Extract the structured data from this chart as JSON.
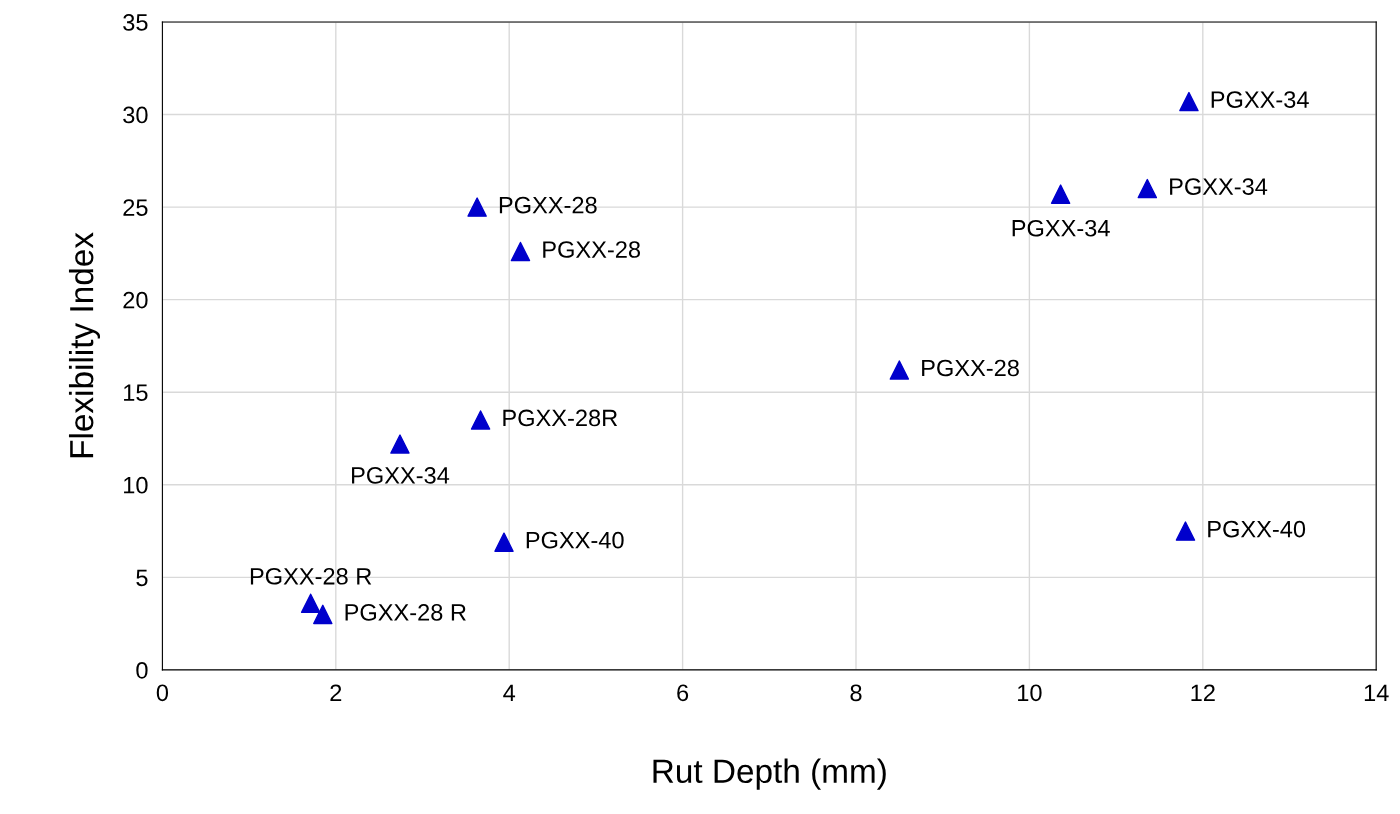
{
  "chart_data": {
    "type": "scatter",
    "xlabel": "Rut Depth (mm)",
    "ylabel": "Flexibility Index",
    "x": [
      11.84,
      11.36,
      10.36,
      3.63,
      4.13,
      8.5,
      3.67,
      2.74,
      3.94,
      11.8,
      1.71,
      1.85
    ],
    "series": [
      {
        "color": "#0000cc",
        "values": [
          30.7,
          26.0,
          25.7,
          25.0,
          22.6,
          16.2,
          13.5,
          12.2,
          6.9,
          7.5,
          3.6,
          3.0
        ]
      }
    ],
    "marker": "triangle",
    "grid": true,
    "legend": false,
    "xlim": [
      0,
      14
    ],
    "xticks": [
      0,
      2,
      4,
      6,
      8,
      10,
      12,
      14
    ],
    "ylim": [
      0,
      35
    ],
    "yticks": [
      0,
      5,
      10,
      15,
      20,
      25,
      30,
      35
    ],
    "annotations": [
      {
        "text": "PGXX-34",
        "x": 11.84,
        "y": 30.7
      },
      {
        "text": "PGXX-34",
        "x": 11.36,
        "y": 26.0
      },
      {
        "text": "PGXX-34",
        "x": 10.36,
        "y": 25.7
      },
      {
        "text": "PGXX-28",
        "x": 3.63,
        "y": 25.0
      },
      {
        "text": "PGXX-28",
        "x": 4.13,
        "y": 22.6
      },
      {
        "text": "PGXX-28",
        "x": 8.5,
        "y": 16.2
      },
      {
        "text": "PGXX-28R",
        "x": 3.67,
        "y": 13.5
      },
      {
        "text": "PGXX-34",
        "x": 2.74,
        "y": 12.2
      },
      {
        "text": "PGXX-40",
        "x": 3.94,
        "y": 6.9
      },
      {
        "text": "PGXX-40",
        "x": 11.8,
        "y": 7.5
      },
      {
        "text": "PGXX-28 R",
        "x": 1.71,
        "y": 3.6
      },
      {
        "text": "PGXX-28 R",
        "x": 1.85,
        "y": 3.0
      }
    ]
  }
}
